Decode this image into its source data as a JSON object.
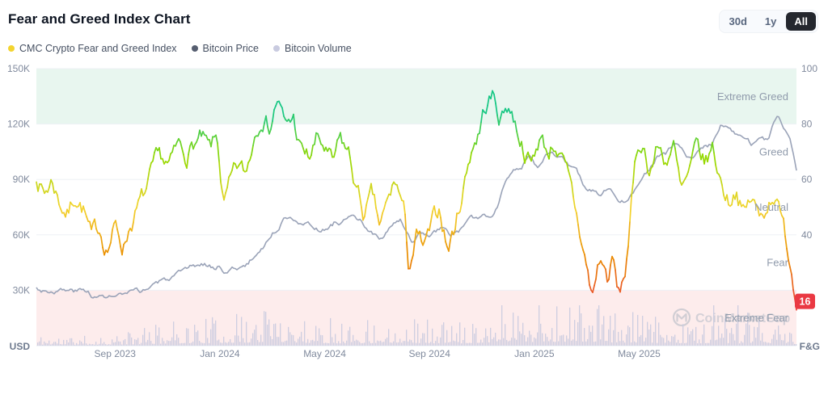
{
  "header": {
    "title": "Fear and Greed Index Chart"
  },
  "range_buttons": [
    {
      "label": "30d",
      "active": false
    },
    {
      "label": "1y",
      "active": false
    },
    {
      "label": "All",
      "active": true
    }
  ],
  "legend": [
    {
      "label": "CMC Crypto Fear and Greed Index",
      "color": "#f3d42f"
    },
    {
      "label": "Bitcoin Price",
      "color": "#565e70"
    },
    {
      "label": "Bitcoin Volume",
      "color": "#c9cbe0"
    }
  ],
  "chart_data": {
    "type": "line",
    "title": "Fear and Greed Index Chart",
    "months_span": 29,
    "x_ticks": [
      {
        "m": 3,
        "label": "Sep 2023"
      },
      {
        "m": 7,
        "label": "Jan 2024"
      },
      {
        "m": 11,
        "label": "May 2024"
      },
      {
        "m": 15,
        "label": "Sep 2024"
      },
      {
        "m": 19,
        "label": "Jan 2025"
      },
      {
        "m": 23,
        "label": "May 2025"
      }
    ],
    "left_axis": {
      "label": "USD",
      "range_k": [
        0,
        150
      ],
      "ticks": [
        {
          "v": 150,
          "label": "150K"
        },
        {
          "v": 120,
          "label": "120K"
        },
        {
          "v": 90,
          "label": "90K"
        },
        {
          "v": 60,
          "label": "60K"
        },
        {
          "v": 30,
          "label": "30K"
        }
      ]
    },
    "right_axis": {
      "label": "F&G",
      "range": [
        0,
        100
      ],
      "ticks": [
        {
          "v": 100,
          "label": "100"
        },
        {
          "v": 80,
          "label": "80"
        },
        {
          "v": 60,
          "label": "60"
        },
        {
          "v": 40,
          "label": "40"
        }
      ]
    },
    "zones": [
      {
        "label": "Extreme Greed",
        "center": 90
      },
      {
        "label": "Greed",
        "center": 70
      },
      {
        "label": "Neutral",
        "center": 50
      },
      {
        "label": "Fear",
        "center": 30
      },
      {
        "label": "Extreme Fear",
        "center": 10
      }
    ],
    "bands": {
      "extreme_greed": [
        80,
        100
      ],
      "extreme_fear": [
        0,
        20
      ]
    },
    "colors": {
      "extreme_greed": "#16c784",
      "greed": "#93d900",
      "neutral": "#f3d42f",
      "fear": "#ea8c00",
      "extreme_fear": "#ea3943",
      "band_greed_bg": "#e8f6ef",
      "band_fear_bg": "#fdecec",
      "btc": "#9aa3b8",
      "volume": "#c9cbe0",
      "grid": "#eef1f6",
      "axis_text": "#808a9d",
      "zone_text": "#8f9aab",
      "badge": "#ea3943"
    },
    "series": [
      {
        "name": "CMC Crypto Fear and Greed Index",
        "axis": "fng",
        "anchors": [
          [
            0,
            62
          ],
          [
            0.3,
            55
          ],
          [
            0.6,
            60
          ],
          [
            0.9,
            52
          ],
          [
            1.2,
            48
          ],
          [
            1.5,
            55
          ],
          [
            1.8,
            50
          ],
          [
            2.1,
            38
          ],
          [
            2.4,
            42
          ],
          [
            2.7,
            36
          ],
          [
            3,
            43
          ],
          [
            3.3,
            36
          ],
          [
            3.6,
            45
          ],
          [
            3.9,
            50
          ],
          [
            4.2,
            55
          ],
          [
            4.5,
            63
          ],
          [
            4.8,
            66
          ],
          [
            5.1,
            64
          ],
          [
            5.4,
            71
          ],
          [
            5.7,
            69
          ],
          [
            6,
            73
          ],
          [
            6.3,
            74
          ],
          [
            6.6,
            69
          ],
          [
            6.9,
            74
          ],
          [
            7.15,
            50
          ],
          [
            7.4,
            57
          ],
          [
            7.7,
            63
          ],
          [
            8,
            61
          ],
          [
            8.3,
            76
          ],
          [
            8.6,
            86
          ],
          [
            8.9,
            80
          ],
          [
            9.2,
            90
          ],
          [
            9.5,
            78
          ],
          [
            9.8,
            82
          ],
          [
            10.1,
            70
          ],
          [
            10.4,
            67
          ],
          [
            10.7,
            74
          ],
          [
            11,
            71
          ],
          [
            11.3,
            64
          ],
          [
            11.6,
            73
          ],
          [
            11.9,
            69
          ],
          [
            12.2,
            57
          ],
          [
            12.5,
            47
          ],
          [
            12.8,
            53
          ],
          [
            13.1,
            42
          ],
          [
            13.4,
            50
          ],
          [
            13.7,
            59
          ],
          [
            14,
            50
          ],
          [
            14.2,
            28
          ],
          [
            14.5,
            39
          ],
          [
            14.8,
            34
          ],
          [
            15.1,
            42
          ],
          [
            15.4,
            49
          ],
          [
            15.7,
            35
          ],
          [
            16,
            44
          ],
          [
            16.3,
            58
          ],
          [
            16.6,
            72
          ],
          [
            16.9,
            78
          ],
          [
            17.1,
            86
          ],
          [
            17.4,
            90
          ],
          [
            17.7,
            82
          ],
          [
            18,
            88
          ],
          [
            18.3,
            80
          ],
          [
            18.6,
            72
          ],
          [
            18.9,
            65
          ],
          [
            19.2,
            76
          ],
          [
            19.5,
            70
          ],
          [
            19.8,
            74
          ],
          [
            20.1,
            65
          ],
          [
            20.4,
            55
          ],
          [
            20.7,
            42
          ],
          [
            21,
            28
          ],
          [
            21.2,
            17
          ],
          [
            21.5,
            32
          ],
          [
            21.8,
            24
          ],
          [
            22,
            31
          ],
          [
            22.2,
            17
          ],
          [
            22.45,
            25
          ],
          [
            22.7,
            50
          ],
          [
            22.9,
            68
          ],
          [
            23.1,
            74
          ],
          [
            23.4,
            64
          ],
          [
            23.7,
            72
          ],
          [
            24,
            67
          ],
          [
            24.3,
            73
          ],
          [
            24.6,
            54
          ],
          [
            24.9,
            60
          ],
          [
            25.2,
            70
          ],
          [
            25.5,
            65
          ],
          [
            25.8,
            71
          ],
          [
            26.1,
            60
          ],
          [
            26.4,
            53
          ],
          [
            26.7,
            58
          ],
          [
            27,
            47
          ],
          [
            27.3,
            53
          ],
          [
            27.6,
            45
          ],
          [
            27.9,
            52
          ],
          [
            28.2,
            57
          ],
          [
            28.4,
            46
          ],
          [
            28.6,
            38
          ],
          [
            28.8,
            29
          ],
          [
            29,
            16
          ]
        ]
      },
      {
        "name": "Bitcoin Price",
        "axis": "usd_k",
        "anchors": [
          [
            0,
            31
          ],
          [
            0.4,
            30
          ],
          [
            0.8,
            30.5
          ],
          [
            1.2,
            29.5
          ],
          [
            1.6,
            29.5
          ],
          [
            2,
            29
          ],
          [
            2.3,
            26
          ],
          [
            2.7,
            26.5
          ],
          [
            3,
            26.5
          ],
          [
            3.4,
            27
          ],
          [
            3.8,
            28
          ],
          [
            4.2,
            30
          ],
          [
            4.5,
            34
          ],
          [
            4.9,
            35
          ],
          [
            5.2,
            37
          ],
          [
            5.6,
            38
          ],
          [
            6,
            42
          ],
          [
            6.4,
            44
          ],
          [
            6.8,
            42.5
          ],
          [
            7,
            43
          ],
          [
            7.3,
            40
          ],
          [
            7.6,
            42.5
          ],
          [
            8,
            43
          ],
          [
            8.5,
            51
          ],
          [
            8.8,
            57
          ],
          [
            9.1,
            62
          ],
          [
            9.4,
            68
          ],
          [
            9.7,
            71
          ],
          [
            10,
            69
          ],
          [
            10.3,
            66
          ],
          [
            10.6,
            64
          ],
          [
            11,
            63
          ],
          [
            11.4,
            67
          ],
          [
            11.7,
            68
          ],
          [
            12,
            69
          ],
          [
            12.4,
            66
          ],
          [
            12.8,
            61
          ],
          [
            13.2,
            57
          ],
          [
            13.6,
            65
          ],
          [
            13.9,
            68
          ],
          [
            14.1,
            60
          ],
          [
            14.3,
            55
          ],
          [
            14.6,
            61
          ],
          [
            15,
            59
          ],
          [
            15.4,
            63
          ],
          [
            15.8,
            60
          ],
          [
            16.2,
            63
          ],
          [
            16.6,
            67
          ],
          [
            17,
            70
          ],
          [
            17.3,
            69
          ],
          [
            17.6,
            76
          ],
          [
            17.9,
            91
          ],
          [
            18.2,
            98
          ],
          [
            18.5,
            96
          ],
          [
            18.8,
            101
          ],
          [
            19.1,
            94
          ],
          [
            19.4,
            102
          ],
          [
            19.7,
            105
          ],
          [
            20,
            102
          ],
          [
            20.3,
            98
          ],
          [
            20.6,
            96
          ],
          [
            20.9,
            86
          ],
          [
            21.2,
            84
          ],
          [
            21.5,
            83
          ],
          [
            21.8,
            87
          ],
          [
            22.1,
            82
          ],
          [
            22.4,
            79
          ],
          [
            22.8,
            85
          ],
          [
            23.1,
            94
          ],
          [
            23.4,
            97
          ],
          [
            23.7,
            104
          ],
          [
            24,
            103
          ],
          [
            24.3,
            109
          ],
          [
            24.6,
            106
          ],
          [
            24.9,
            101
          ],
          [
            25.2,
            105
          ],
          [
            25.5,
            108
          ],
          [
            25.8,
            110
          ],
          [
            26.1,
            118
          ],
          [
            26.4,
            120
          ],
          [
            26.7,
            116
          ],
          [
            27,
            113
          ],
          [
            27.3,
            109
          ],
          [
            27.6,
            113
          ],
          [
            27.9,
            111
          ],
          [
            28.1,
            118
          ],
          [
            28.3,
            124
          ],
          [
            28.6,
            117
          ],
          [
            28.8,
            109
          ],
          [
            29,
            95
          ]
        ]
      },
      {
        "name": "Bitcoin Volume",
        "axis": "relative",
        "anchors": [
          [
            0,
            0.22
          ],
          [
            1,
            0.2
          ],
          [
            2,
            0.18
          ],
          [
            3,
            0.22
          ],
          [
            4,
            0.3
          ],
          [
            5,
            0.45
          ],
          [
            6,
            0.5
          ],
          [
            7,
            0.55
          ],
          [
            8,
            0.6
          ],
          [
            9,
            0.85
          ],
          [
            10,
            0.6
          ],
          [
            11,
            0.5
          ],
          [
            12,
            0.48
          ],
          [
            13,
            0.52
          ],
          [
            14,
            0.6
          ],
          [
            15,
            0.5
          ],
          [
            16,
            0.45
          ],
          [
            17,
            0.6
          ],
          [
            18,
            0.9
          ],
          [
            19,
            0.75
          ],
          [
            20,
            0.8
          ],
          [
            21,
            0.85
          ],
          [
            22,
            0.65
          ],
          [
            23,
            0.6
          ],
          [
            24,
            0.5
          ],
          [
            25,
            0.48
          ],
          [
            26,
            0.52
          ],
          [
            27,
            0.45
          ],
          [
            28,
            0.5
          ],
          [
            29,
            0.3
          ]
        ]
      }
    ],
    "current_fng": {
      "value": 16
    },
    "watermark": "CoinMarketCap"
  }
}
